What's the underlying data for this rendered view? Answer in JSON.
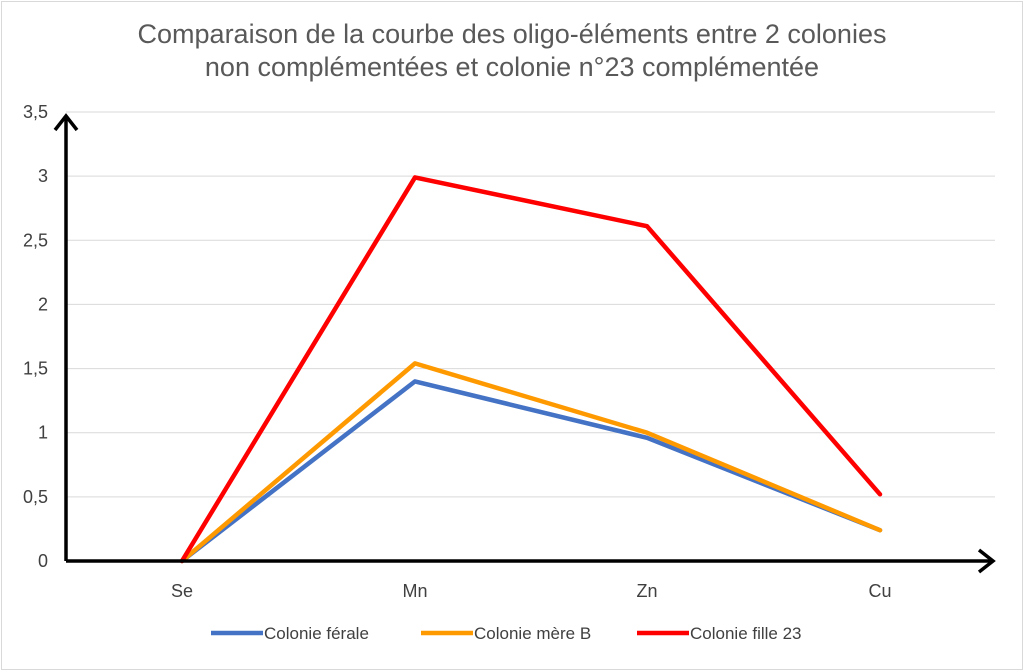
{
  "chart_data": {
    "type": "line",
    "title_line1": "Comparaison de la courbe des oligo-éléments entre 2 colonies",
    "title_line2": "non complémentées et colonie n°23 complémentée",
    "categories": [
      "Se",
      "Mn",
      "Zn",
      "Cu"
    ],
    "ylim": [
      0,
      3.5
    ],
    "yticks": [
      "0",
      "0,5",
      "1",
      "1,5",
      "2",
      "2,5",
      "3",
      "3,5"
    ],
    "grid": true,
    "legend_position": "bottom",
    "series": [
      {
        "name": "Colonie férale",
        "color": "#4472c4",
        "values": [
          0,
          1.4,
          0.96,
          0.24
        ]
      },
      {
        "name": "Colonie mère B",
        "color": "#ff9900",
        "values": [
          0,
          1.54,
          1.0,
          0.24
        ]
      },
      {
        "name": "Colonie fille 23",
        "color": "#ff0000",
        "values": [
          0,
          2.99,
          2.61,
          0.52
        ]
      }
    ]
  }
}
